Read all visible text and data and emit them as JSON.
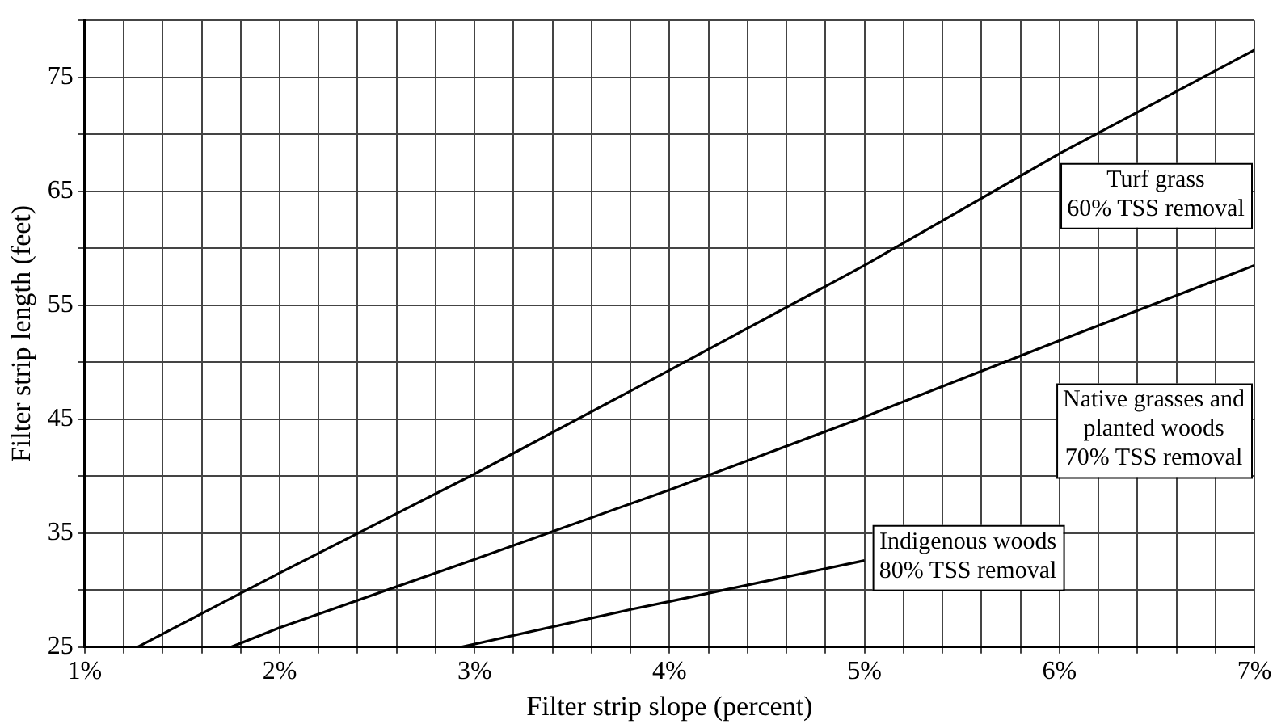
{
  "chart_data": {
    "type": "line",
    "xlabel": "Filter strip slope (percent)",
    "ylabel": "Filter strip length (feet)",
    "xlim": [
      1,
      7
    ],
    "ylim": [
      25,
      80
    ],
    "xticks": [
      {
        "value": 1,
        "label": "1%"
      },
      {
        "value": 1.2,
        "label": null
      },
      {
        "value": 1.4,
        "label": null
      },
      {
        "value": 1.6,
        "label": null
      },
      {
        "value": 1.8,
        "label": null
      },
      {
        "value": 2,
        "label": "2%"
      },
      {
        "value": 2.2,
        "label": null
      },
      {
        "value": 2.4,
        "label": null
      },
      {
        "value": 2.6,
        "label": null
      },
      {
        "value": 2.8,
        "label": null
      },
      {
        "value": 3,
        "label": "3%"
      },
      {
        "value": 3.2,
        "label": null
      },
      {
        "value": 3.4,
        "label": null
      },
      {
        "value": 3.6,
        "label": null
      },
      {
        "value": 3.8,
        "label": null
      },
      {
        "value": 4,
        "label": "4%"
      },
      {
        "value": 4.2,
        "label": null
      },
      {
        "value": 4.4,
        "label": null
      },
      {
        "value": 4.6,
        "label": null
      },
      {
        "value": 4.8,
        "label": null
      },
      {
        "value": 5,
        "label": "5%"
      },
      {
        "value": 5.2,
        "label": null
      },
      {
        "value": 5.4,
        "label": null
      },
      {
        "value": 5.6,
        "label": null
      },
      {
        "value": 5.8,
        "label": null
      },
      {
        "value": 6,
        "label": "6%"
      },
      {
        "value": 6.2,
        "label": null
      },
      {
        "value": 6.4,
        "label": null
      },
      {
        "value": 6.6,
        "label": null
      },
      {
        "value": 6.8,
        "label": null
      },
      {
        "value": 7,
        "label": "7%"
      }
    ],
    "yticks": [
      25,
      {
        "value": 30,
        "label": null
      },
      35,
      {
        "value": 40,
        "label": null
      },
      45,
      {
        "value": 50,
        "label": null
      },
      55,
      {
        "value": 60,
        "label": null
      },
      65,
      {
        "value": 70,
        "label": null
      },
      75,
      {
        "value": 80,
        "label": null
      }
    ],
    "grid": true,
    "marker": "none",
    "line_style": "solid",
    "series": [
      {
        "name": "Turf grass\n60% TSS removal",
        "color": "#000000",
        "x": [
          1.27,
          2,
          3,
          4,
          5,
          6,
          7
        ],
        "values": [
          25,
          31.5,
          40.2,
          49.3,
          58.5,
          68.3,
          77.4
        ]
      },
      {
        "name": "Native grasses and\nplanted woods\n70% TSS removal",
        "color": "#000000",
        "x": [
          1.75,
          2,
          3,
          4,
          5,
          6,
          7
        ],
        "values": [
          25,
          26.7,
          32.7,
          38.8,
          45.2,
          51.9,
          58.5
        ]
      },
      {
        "name": "Indigenous woods\n80% TSS removal",
        "color": "#000000",
        "x": [
          2.93,
          3.8,
          4,
          5
        ],
        "values": [
          25,
          28.3,
          29,
          32.6
        ]
      }
    ]
  }
}
